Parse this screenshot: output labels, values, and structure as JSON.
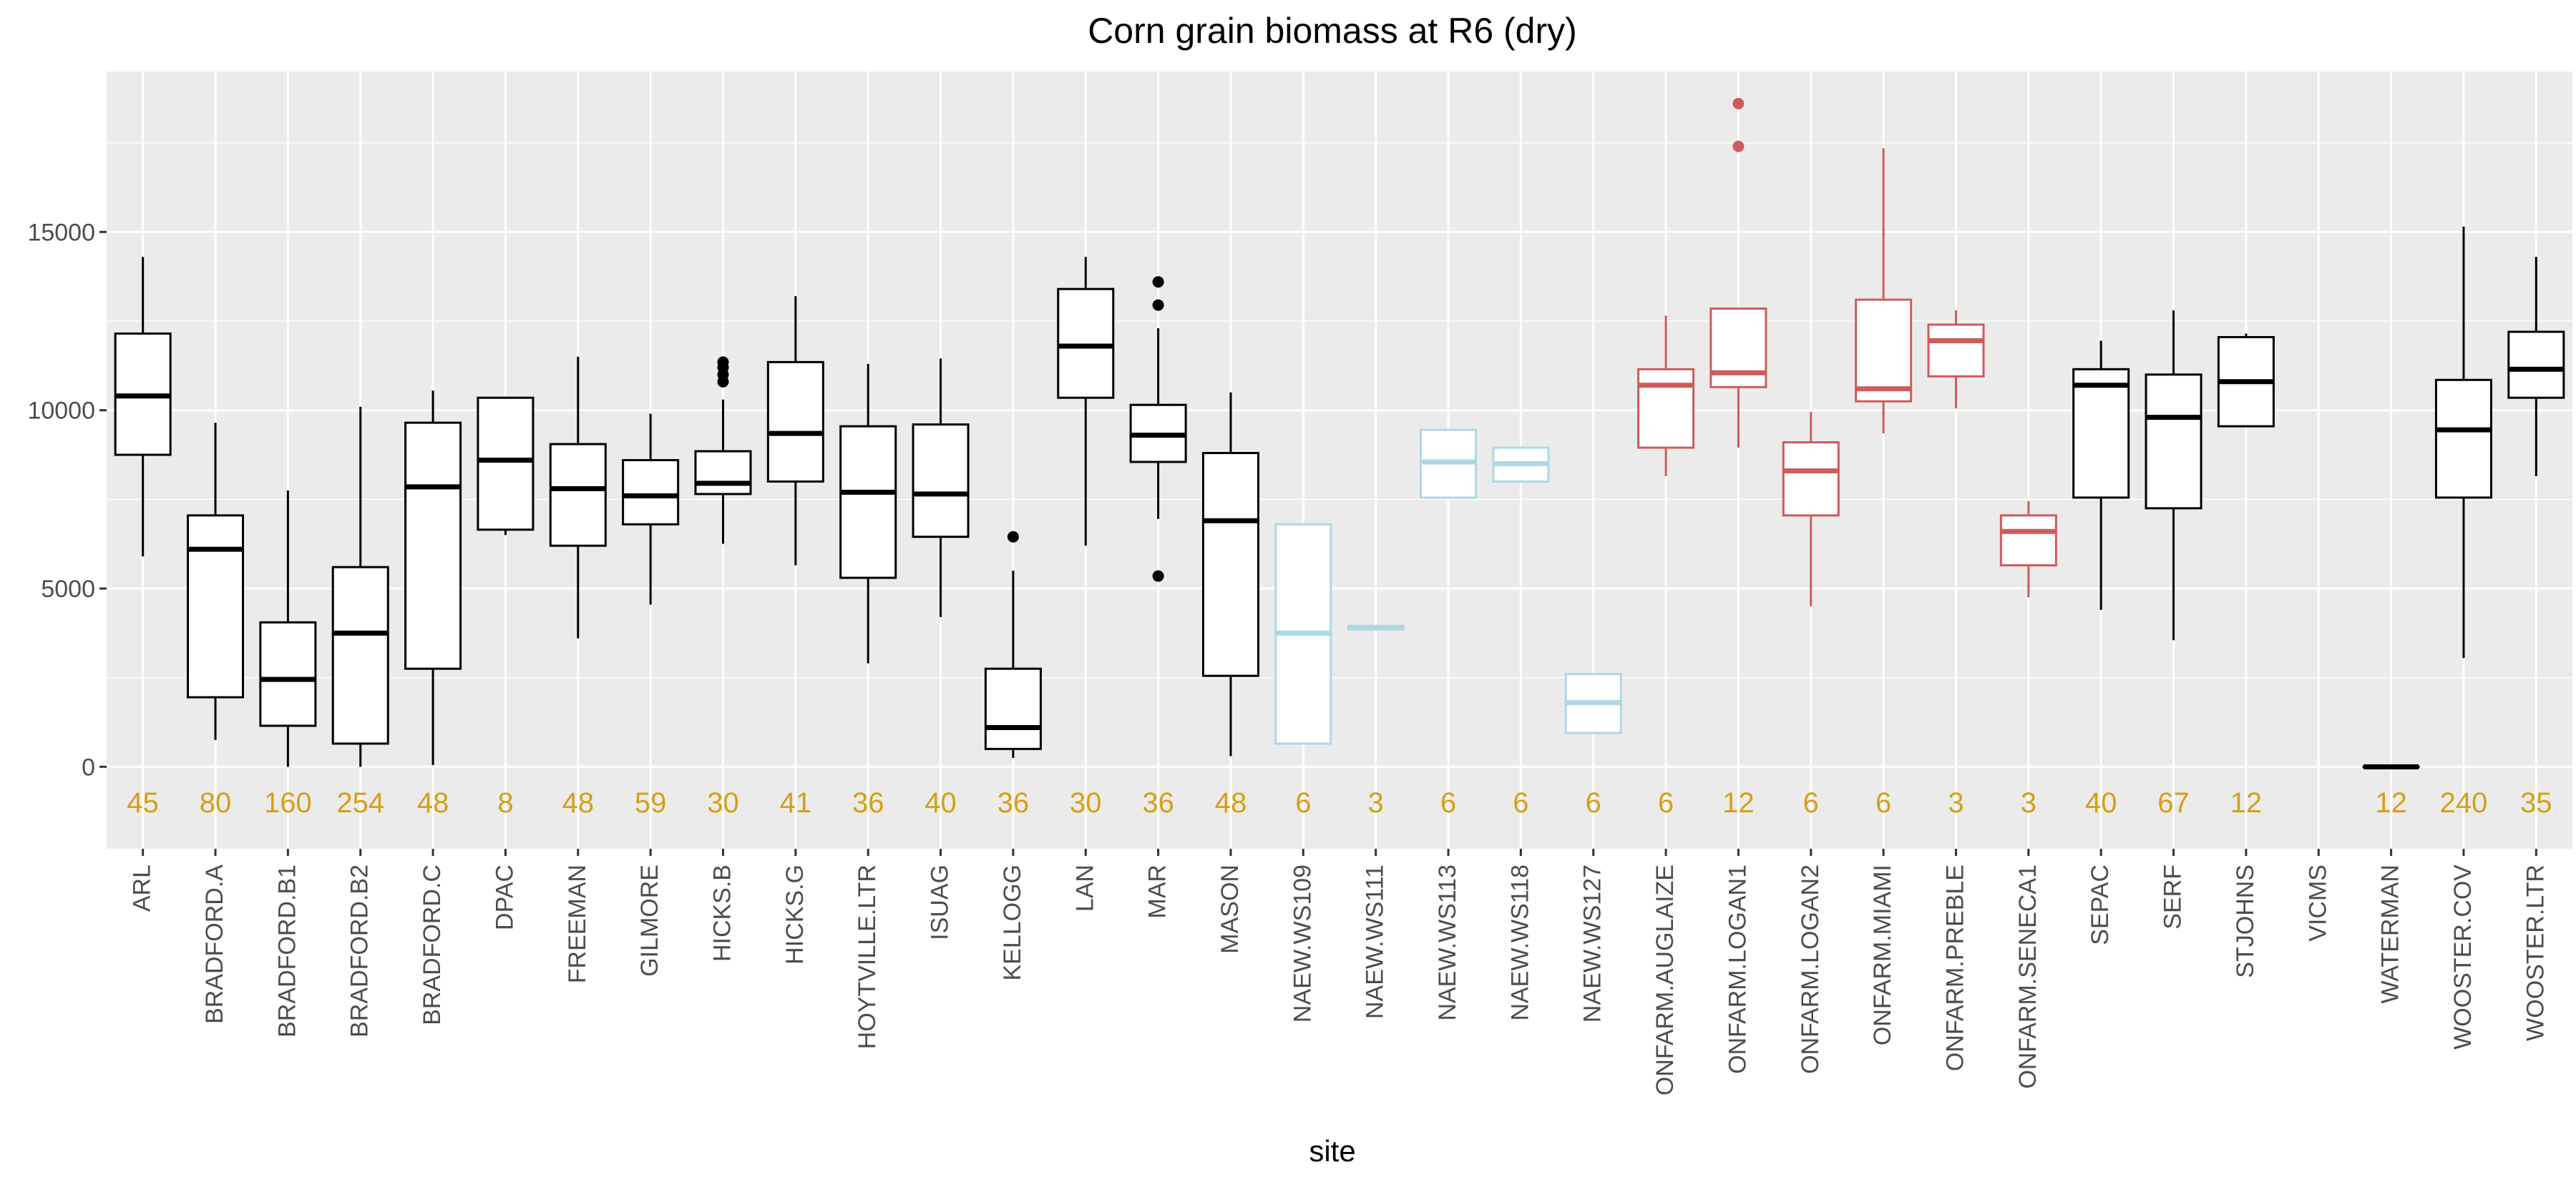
{
  "chart_data": {
    "type": "boxplot",
    "title": "Corn grain biomass at R6 (dry)",
    "xlabel": "site",
    "ylabel": "",
    "ylim": [
      -2300,
      19500
    ],
    "yticks": [
      0,
      5000,
      10000,
      15000
    ],
    "grid": true,
    "count_label_color": "#D4A017",
    "colors": {
      "default": "#000000",
      "naew": "#ADD8E6",
      "onfarm": "#CD5C5C",
      "panel": "#EBEBEB",
      "grid": "#FFFFFF"
    },
    "sites": [
      {
        "label": "ARL",
        "n": "45",
        "group": "default",
        "lower": 5900,
        "q1": 8750,
        "median": 10400,
        "q3": 12150,
        "upper": 14300,
        "outliers": []
      },
      {
        "label": "BRADFORD.A",
        "n": "80",
        "group": "default",
        "lower": 750,
        "q1": 1950,
        "median": 6100,
        "q3": 7050,
        "upper": 9650,
        "outliers": []
      },
      {
        "label": "BRADFORD.B1",
        "n": "160",
        "group": "default",
        "lower": 0,
        "q1": 1150,
        "median": 2450,
        "q3": 4050,
        "upper": 7750,
        "outliers": []
      },
      {
        "label": "BRADFORD.B2",
        "n": "254",
        "group": "default",
        "lower": 0,
        "q1": 650,
        "median": 3750,
        "q3": 5600,
        "upper": 10100,
        "outliers": []
      },
      {
        "label": "BRADFORD.C",
        "n": "48",
        "group": "default",
        "lower": 50,
        "q1": 2750,
        "median": 7850,
        "q3": 9650,
        "upper": 10550,
        "outliers": []
      },
      {
        "label": "DPAC",
        "n": "8",
        "group": "default",
        "lower": 6500,
        "q1": 6650,
        "median": 8600,
        "q3": 10350,
        "upper": 10350,
        "outliers": []
      },
      {
        "label": "FREEMAN",
        "n": "48",
        "group": "default",
        "lower": 3600,
        "q1": 6200,
        "median": 7800,
        "q3": 9050,
        "upper": 11500,
        "outliers": []
      },
      {
        "label": "GILMORE",
        "n": "59",
        "group": "default",
        "lower": 4550,
        "q1": 6800,
        "median": 7600,
        "q3": 8600,
        "upper": 9900,
        "outliers": []
      },
      {
        "label": "HICKS.B",
        "n": "30",
        "group": "default",
        "lower": 6250,
        "q1": 7650,
        "median": 7950,
        "q3": 8850,
        "upper": 10300,
        "outliers": [
          10800,
          11000,
          11200,
          11350
        ]
      },
      {
        "label": "HICKS.G",
        "n": "41",
        "group": "default",
        "lower": 5650,
        "q1": 8000,
        "median": 9350,
        "q3": 11350,
        "upper": 13200,
        "outliers": []
      },
      {
        "label": "HOYTVILLE.LTR",
        "n": "36",
        "group": "default",
        "lower": 2900,
        "q1": 5300,
        "median": 7700,
        "q3": 9550,
        "upper": 11300,
        "outliers": []
      },
      {
        "label": "ISUAG",
        "n": "40",
        "group": "default",
        "lower": 4200,
        "q1": 6450,
        "median": 7650,
        "q3": 9600,
        "upper": 11450,
        "outliers": []
      },
      {
        "label": "KELLOGG",
        "n": "36",
        "group": "default",
        "lower": 250,
        "q1": 500,
        "median": 1100,
        "q3": 2750,
        "upper": 5500,
        "outliers": [
          6450
        ]
      },
      {
        "label": "LAN",
        "n": "30",
        "group": "default",
        "lower": 6200,
        "q1": 10350,
        "median": 11800,
        "q3": 13400,
        "upper": 14300,
        "outliers": []
      },
      {
        "label": "MAR",
        "n": "36",
        "group": "default",
        "lower": 6950,
        "q1": 8550,
        "median": 9300,
        "q3": 10150,
        "upper": 12300,
        "outliers": [
          5350,
          12950,
          13600
        ]
      },
      {
        "label": "MASON",
        "n": "48",
        "group": "default",
        "lower": 300,
        "q1": 2550,
        "median": 6900,
        "q3": 8800,
        "upper": 10500,
        "outliers": []
      },
      {
        "label": "NAEW.WS109",
        "n": "6",
        "group": "naew",
        "lower": 650,
        "q1": 650,
        "median": 3750,
        "q3": 6800,
        "upper": 6800,
        "outliers": []
      },
      {
        "label": "NAEW.WS111",
        "n": "3",
        "group": "naew",
        "lower": 3850,
        "q1": 3850,
        "median": 3900,
        "q3": 3950,
        "upper": 3950,
        "outliers": []
      },
      {
        "label": "NAEW.WS113",
        "n": "6",
        "group": "naew",
        "lower": 7550,
        "q1": 7550,
        "median": 8550,
        "q3": 9450,
        "upper": 9450,
        "outliers": []
      },
      {
        "label": "NAEW.WS118",
        "n": "6",
        "group": "naew",
        "lower": 8000,
        "q1": 8000,
        "median": 8500,
        "q3": 8950,
        "upper": 8950,
        "outliers": []
      },
      {
        "label": "NAEW.WS127",
        "n": "6",
        "group": "naew",
        "lower": 950,
        "q1": 950,
        "median": 1800,
        "q3": 2600,
        "upper": 2600,
        "outliers": []
      },
      {
        "label": "ONFARM.AUGLAIZE",
        "n": "6",
        "group": "onfarm",
        "lower": 8150,
        "q1": 8950,
        "median": 10700,
        "q3": 11150,
        "upper": 12650,
        "outliers": []
      },
      {
        "label": "ONFARM.LOGAN1",
        "n": "12",
        "group": "onfarm",
        "lower": 8950,
        "q1": 10650,
        "median": 11050,
        "q3": 12850,
        "upper": 12850,
        "outliers": [
          17400,
          18600
        ]
      },
      {
        "label": "ONFARM.LOGAN2",
        "n": "6",
        "group": "onfarm",
        "lower": 4500,
        "q1": 7050,
        "median": 8300,
        "q3": 9100,
        "upper": 9950,
        "outliers": []
      },
      {
        "label": "ONFARM.MIAMI",
        "n": "6",
        "group": "onfarm",
        "lower": 9350,
        "q1": 10250,
        "median": 10600,
        "q3": 13100,
        "upper": 17350,
        "outliers": []
      },
      {
        "label": "ONFARM.PREBLE",
        "n": "3",
        "group": "onfarm",
        "lower": 10050,
        "q1": 10950,
        "median": 11950,
        "q3": 12400,
        "upper": 12800,
        "outliers": []
      },
      {
        "label": "ONFARM.SENECA1",
        "n": "3",
        "group": "onfarm",
        "lower": 4750,
        "q1": 5650,
        "median": 6600,
        "q3": 7050,
        "upper": 7450,
        "outliers": []
      },
      {
        "label": "SEPAC",
        "n": "40",
        "group": "default",
        "lower": 4400,
        "q1": 7550,
        "median": 10700,
        "q3": 11150,
        "upper": 11950,
        "outliers": []
      },
      {
        "label": "SERF",
        "n": "67",
        "group": "default",
        "lower": 3550,
        "q1": 7250,
        "median": 9800,
        "q3": 11000,
        "upper": 12800,
        "outliers": []
      },
      {
        "label": "STJOHNS",
        "n": "12",
        "group": "default",
        "lower": 9550,
        "q1": 9550,
        "median": 10800,
        "q3": 12050,
        "upper": 12150,
        "outliers": []
      },
      {
        "label": "VICMS",
        "n": "",
        "group": "default",
        "lower": null,
        "q1": null,
        "median": null,
        "q3": null,
        "upper": null,
        "outliers": []
      },
      {
        "label": "WATERMAN",
        "n": "12",
        "group": "default",
        "lower": 0,
        "q1": 0,
        "median": 0,
        "q3": 0,
        "upper": 0,
        "outliers": []
      },
      {
        "label": "WOOSTER.COV",
        "n": "240",
        "group": "default",
        "lower": 3050,
        "q1": 7550,
        "median": 9450,
        "q3": 10850,
        "upper": 15150,
        "outliers": []
      },
      {
        "label": "WOOSTER.LTR",
        "n": "35",
        "group": "default",
        "lower": 8150,
        "q1": 10350,
        "median": 11150,
        "q3": 12200,
        "upper": 14300,
        "outliers": []
      }
    ]
  }
}
